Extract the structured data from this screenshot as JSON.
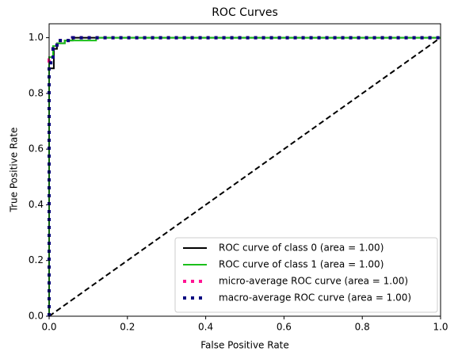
{
  "chart_data": {
    "type": "line",
    "title": "ROC Curves",
    "xlabel": "False Positive Rate",
    "ylabel": "True Positive Rate",
    "xlim": [
      0,
      1
    ],
    "ylim": [
      0,
      1.05
    ],
    "xticks": [
      {
        "value": 0,
        "label": "0.0"
      },
      0.2,
      0.4,
      0.6,
      0.8,
      {
        "value": 1,
        "label": "1.0"
      }
    ],
    "yticks": [
      {
        "value": 0,
        "label": "0.0"
      },
      0.2,
      0.4,
      0.6,
      0.8,
      {
        "value": 1,
        "label": "1.0"
      }
    ],
    "legend": "lower right",
    "reference_line": {
      "x": [
        0,
        1
      ],
      "values": [
        0,
        1
      ],
      "color": "#000000"
    },
    "series": [
      {
        "name": "ROC curve of class 0 (area = 1.00)",
        "color": "#000000",
        "style": "solid",
        "x": [
          0,
          0,
          0.012,
          0.012,
          0.02,
          0.02,
          0.04,
          0.04,
          0.06,
          0.06,
          1
        ],
        "values": [
          0,
          0.89,
          0.89,
          0.96,
          0.96,
          0.98,
          0.98,
          0.99,
          0.99,
          1,
          1
        ]
      },
      {
        "name": "ROC curve of class 1 (area = 1.00)",
        "color": "#1bbf1b",
        "style": "solid",
        "x": [
          0,
          0,
          0.01,
          0.01,
          0.02,
          0.02,
          0.04,
          0.04,
          0.12,
          0.12,
          1
        ],
        "values": [
          0,
          0.93,
          0.93,
          0.97,
          0.97,
          0.98,
          0.98,
          0.99,
          0.99,
          1,
          1
        ]
      },
      {
        "name": "micro-average ROC curve (area = 1.00)",
        "color": "#ff1493",
        "style": "dotted",
        "x": [
          0,
          0,
          0.01,
          0.01,
          0.02,
          0.02,
          0.06,
          0.06,
          1
        ],
        "values": [
          0,
          0.92,
          0.92,
          0.96,
          0.96,
          0.99,
          0.99,
          1,
          1
        ]
      },
      {
        "name": "macro-average ROC curve (area = 1.00)",
        "color": "#000080",
        "style": "dotted",
        "x": [
          0,
          0,
          0.01,
          0.01,
          0.02,
          0.02,
          0.06,
          0.06,
          1
        ],
        "values": [
          0,
          0.91,
          0.91,
          0.96,
          0.96,
          0.99,
          0.99,
          1,
          1
        ]
      }
    ]
  }
}
